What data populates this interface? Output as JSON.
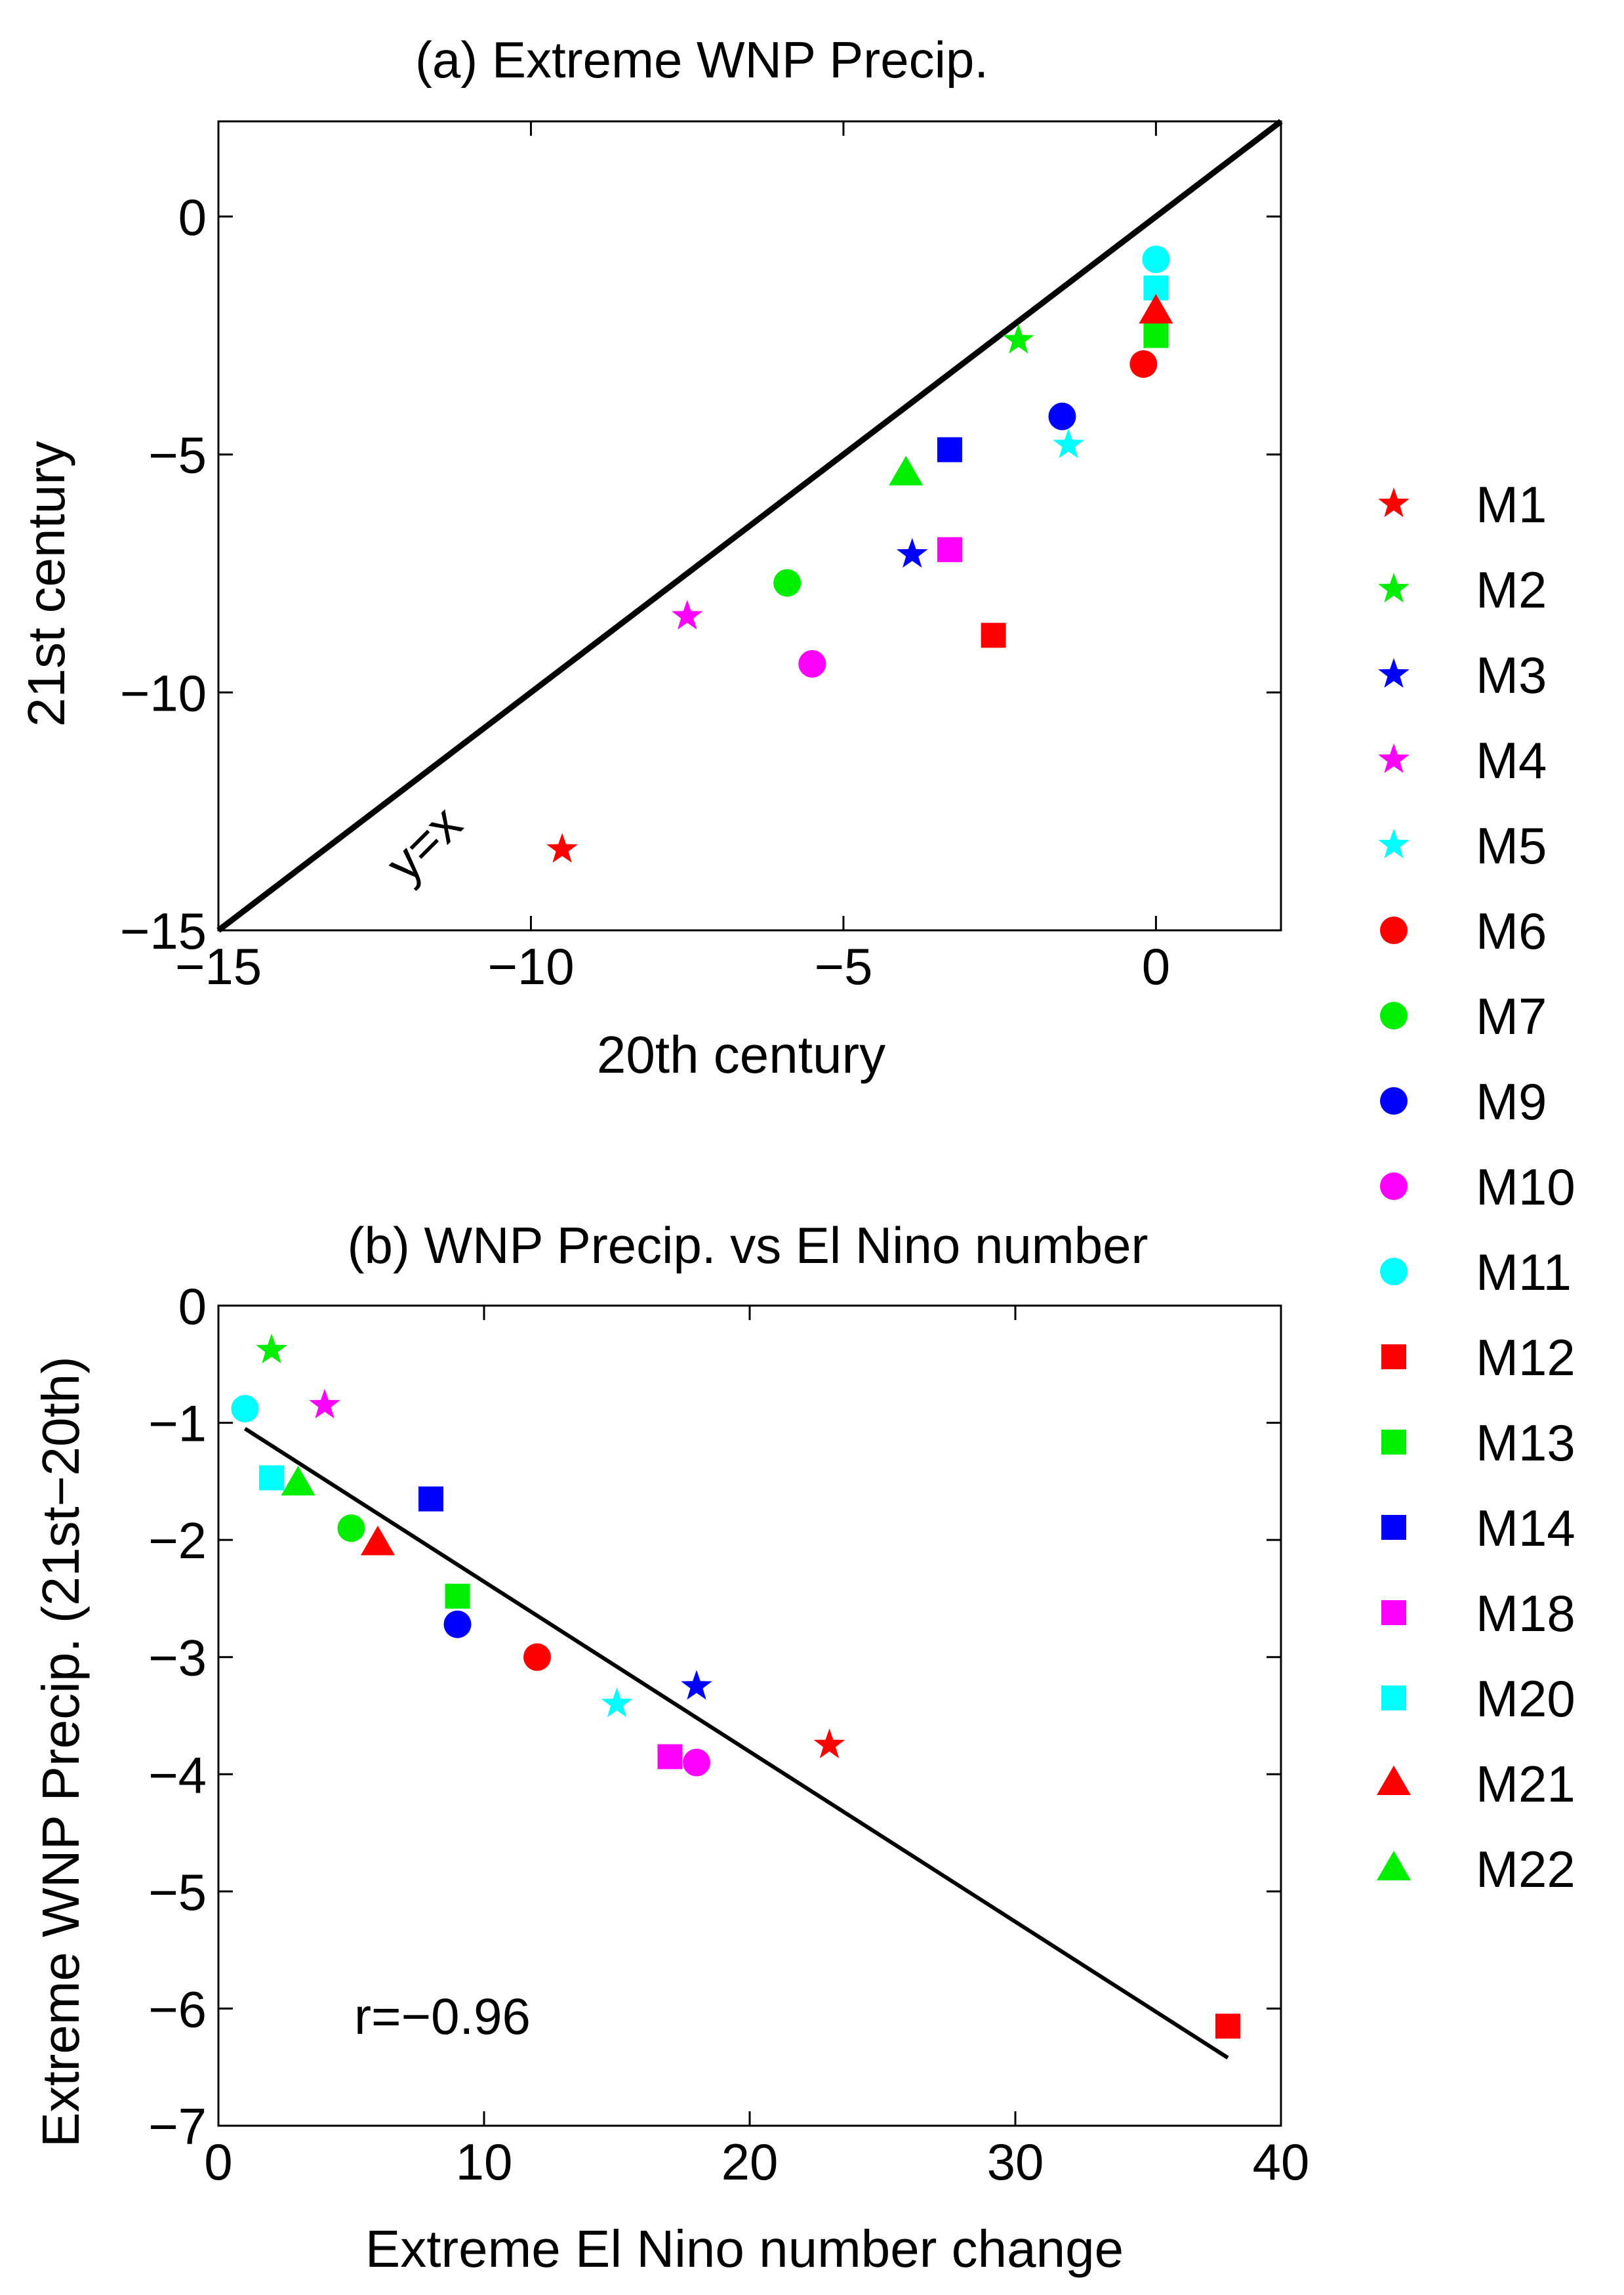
{
  "chart_data": [
    {
      "type": "scatter",
      "title": "(a) Extreme WNP Precip.",
      "xlabel": "20th century",
      "ylabel": "21st century",
      "xlim": [
        -15,
        2
      ],
      "ylim": [
        -15,
        2
      ],
      "xticks": [
        -15,
        -10,
        -5,
        0
      ],
      "yticks": [
        -15,
        -10,
        -5,
        0
      ],
      "tick_labels_x": [
        "−15",
        "−10",
        "−5",
        "0"
      ],
      "tick_labels_y": [
        "−15",
        "−10",
        "−5",
        "0"
      ],
      "reference_line": {
        "label": "y=x",
        "points": [
          [
            -15,
            -15
          ],
          [
            2,
            2
          ]
        ]
      },
      "points": [
        {
          "model": "M1",
          "x": -9.5,
          "y": -13.3
        },
        {
          "model": "M2",
          "x": -2.2,
          "y": -2.6
        },
        {
          "model": "M3",
          "x": -3.9,
          "y": -7.1
        },
        {
          "model": "M4",
          "x": -7.5,
          "y": -8.4
        },
        {
          "model": "M5",
          "x": -1.4,
          "y": -4.8
        },
        {
          "model": "M6",
          "x": -0.2,
          "y": -3.1
        },
        {
          "model": "M7",
          "x": -5.9,
          "y": -7.7
        },
        {
          "model": "M9",
          "x": -1.5,
          "y": -4.2
        },
        {
          "model": "M10",
          "x": -5.5,
          "y": -9.4
        },
        {
          "model": "M11",
          "x": 0.0,
          "y": -0.9
        },
        {
          "model": "M12",
          "x": -2.6,
          "y": -8.8
        },
        {
          "model": "M13",
          "x": 0.0,
          "y": -2.5
        },
        {
          "model": "M14",
          "x": -3.3,
          "y": -4.9
        },
        {
          "model": "M18",
          "x": -3.3,
          "y": -7.0
        },
        {
          "model": "M20",
          "x": 0.0,
          "y": -1.5
        },
        {
          "model": "M21",
          "x": 0.0,
          "y": -2.0
        },
        {
          "model": "M22",
          "x": -4.0,
          "y": -5.4
        }
      ]
    },
    {
      "type": "scatter",
      "title": "(b) WNP Precip. vs El Nino number",
      "xlabel": "Extreme El Nino number change",
      "ylabel": "Extreme WNP Precip. (21st−20th)",
      "xlim": [
        0,
        40
      ],
      "ylim": [
        -7,
        0
      ],
      "xticks": [
        0,
        10,
        20,
        30,
        40
      ],
      "yticks": [
        -7,
        -6,
        -5,
        -4,
        -3,
        -2,
        -1,
        0
      ],
      "tick_labels_x": [
        "0",
        "10",
        "20",
        "30",
        "40"
      ],
      "tick_labels_y": [
        "−7",
        "−6",
        "−5",
        "−4",
        "−3",
        "−2",
        "−1",
        "0"
      ],
      "annotation": "r=−0.96",
      "regression_line": [
        [
          1,
          -1.05
        ],
        [
          38,
          -6.42
        ]
      ],
      "points": [
        {
          "model": "M1",
          "x": 23,
          "y": -3.75
        },
        {
          "model": "M2",
          "x": 2,
          "y": -0.38
        },
        {
          "model": "M3",
          "x": 18,
          "y": -3.25
        },
        {
          "model": "M4",
          "x": 4,
          "y": -0.85
        },
        {
          "model": "M5",
          "x": 15,
          "y": -3.4
        },
        {
          "model": "M6",
          "x": 12,
          "y": -3.0
        },
        {
          "model": "M7",
          "x": 5,
          "y": -1.9
        },
        {
          "model": "M9",
          "x": 9,
          "y": -2.72
        },
        {
          "model": "M10",
          "x": 18,
          "y": -3.9
        },
        {
          "model": "M11",
          "x": 1,
          "y": -0.88
        },
        {
          "model": "M12",
          "x": 38,
          "y": -6.15
        },
        {
          "model": "M13",
          "x": 9,
          "y": -2.48
        },
        {
          "model": "M14",
          "x": 8,
          "y": -1.65
        },
        {
          "model": "M18",
          "x": 17,
          "y": -3.85
        },
        {
          "model": "M20",
          "x": 2,
          "y": -1.47
        },
        {
          "model": "M21",
          "x": 6,
          "y": -2.03
        },
        {
          "model": "M22",
          "x": 3,
          "y": -1.52
        }
      ]
    }
  ],
  "legend": [
    {
      "label": "M1",
      "marker": "star",
      "color": "#ff0000"
    },
    {
      "label": "M2",
      "marker": "star",
      "color": "#00ee00"
    },
    {
      "label": "M3",
      "marker": "star",
      "color": "#0000ff"
    },
    {
      "label": "M4",
      "marker": "star",
      "color": "#ff00ff"
    },
    {
      "label": "M5",
      "marker": "star",
      "color": "#00ffff"
    },
    {
      "label": "M6",
      "marker": "circle",
      "color": "#ff0000"
    },
    {
      "label": "M7",
      "marker": "circle",
      "color": "#00ee00"
    },
    {
      "label": "M9",
      "marker": "circle",
      "color": "#0000ff"
    },
    {
      "label": "M10",
      "marker": "circle",
      "color": "#ff00ff"
    },
    {
      "label": "M11",
      "marker": "circle",
      "color": "#00ffff"
    },
    {
      "label": "M12",
      "marker": "square",
      "color": "#ff0000"
    },
    {
      "label": "M13",
      "marker": "square",
      "color": "#00ee00"
    },
    {
      "label": "M14",
      "marker": "square",
      "color": "#0000ff"
    },
    {
      "label": "M18",
      "marker": "square",
      "color": "#ff00ff"
    },
    {
      "label": "M20",
      "marker": "square",
      "color": "#00ffff"
    },
    {
      "label": "M21",
      "marker": "triangle",
      "color": "#ff0000"
    },
    {
      "label": "M22",
      "marker": "triangle",
      "color": "#00ee00"
    }
  ]
}
